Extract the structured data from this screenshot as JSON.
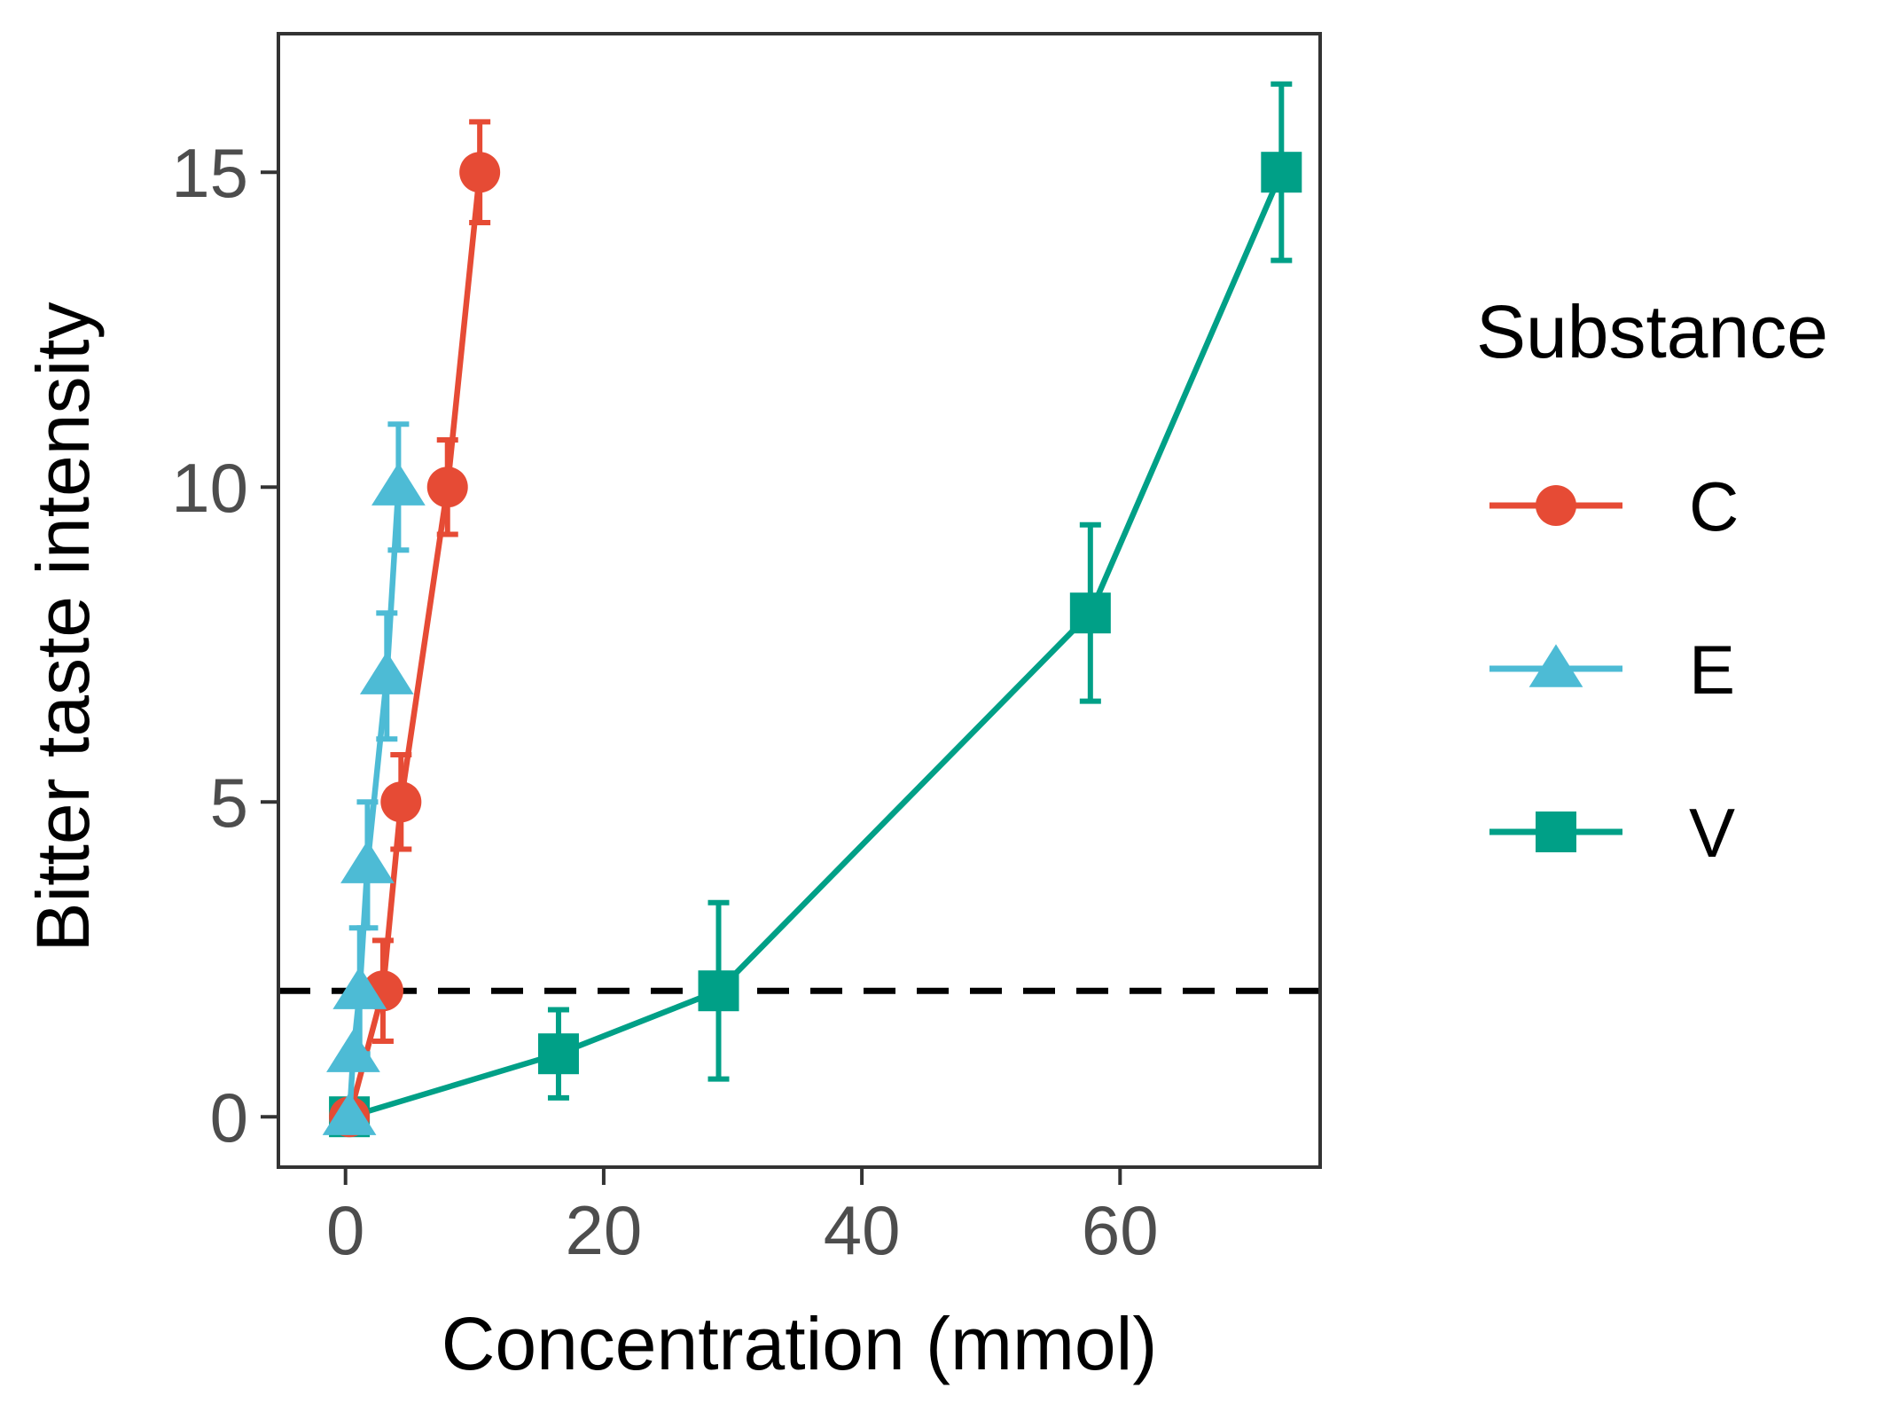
{
  "chart_data": {
    "type": "line",
    "xlabel": "Concentration (mmol)",
    "ylabel": "Bitter taste intensity",
    "xlim": [
      -5.2,
      75.5
    ],
    "ylim": [
      -0.8,
      17.2
    ],
    "xticks": [
      0,
      20,
      40,
      60
    ],
    "yticks": [
      0,
      5,
      10,
      15
    ],
    "grid": false,
    "legend": {
      "title": "Substance",
      "placement": "right",
      "entries": [
        {
          "label": "C",
          "marker": "circle",
          "color": "#E64B35"
        },
        {
          "label": "E",
          "marker": "triangle",
          "color": "#4DBBD5"
        },
        {
          "label": "V",
          "marker": "square",
          "color": "#00A087"
        }
      ]
    },
    "reference_line": {
      "y": 2,
      "style": "dashed",
      "color": "#000000"
    },
    "series": [
      {
        "name": "C",
        "color": "#E64B35",
        "marker": "circle",
        "points": [
          {
            "x": 0.3,
            "y": 0,
            "err": 0.0
          },
          {
            "x": 2.9,
            "y": 2,
            "err": 0.8
          },
          {
            "x": 4.3,
            "y": 5,
            "err": 0.75
          },
          {
            "x": 7.9,
            "y": 10,
            "err": 0.75
          },
          {
            "x": 10.4,
            "y": 15,
            "err": 0.8
          }
        ]
      },
      {
        "name": "E",
        "color": "#4DBBD5",
        "marker": "triangle",
        "points": [
          {
            "x": 0.3,
            "y": 0,
            "err": 0.0
          },
          {
            "x": 0.6,
            "y": 1,
            "err": 0.0
          },
          {
            "x": 1.1,
            "y": 2,
            "err": 1.0
          },
          {
            "x": 1.7,
            "y": 4,
            "err": 1.0
          },
          {
            "x": 3.2,
            "y": 7,
            "err": 1.0
          },
          {
            "x": 4.1,
            "y": 10,
            "err": 1.0
          }
        ]
      },
      {
        "name": "V",
        "color": "#00A087",
        "marker": "square",
        "points": [
          {
            "x": 0.3,
            "y": 0,
            "err": 0.0
          },
          {
            "x": 16.5,
            "y": 1,
            "err": 0.7
          },
          {
            "x": 28.9,
            "y": 2,
            "err": 1.4
          },
          {
            "x": 57.7,
            "y": 8,
            "err": 1.4
          },
          {
            "x": 72.5,
            "y": 15,
            "err": 1.4
          }
        ]
      }
    ]
  }
}
